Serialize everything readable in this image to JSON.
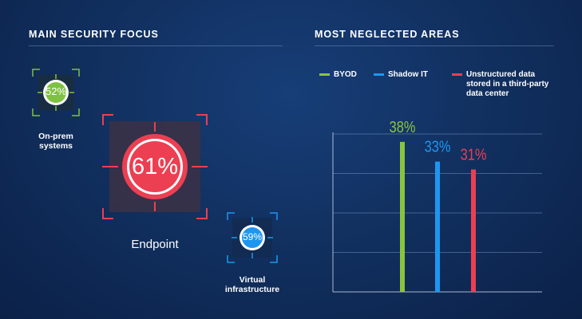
{
  "left_section": {
    "title": "MAIN SECURITY FOCUS",
    "items": [
      {
        "value": "52%",
        "label": "On-prem\nsystems",
        "color": "#7fc241",
        "ring": "#ffffff"
      },
      {
        "value": "61%",
        "label": "Endpoint",
        "color": "#ec3f52",
        "ring": "#ffffff"
      },
      {
        "value": "59%",
        "label": "Virtual\ninfrastructure",
        "color": "#1e96f0",
        "ring": "#ffffff"
      }
    ]
  },
  "right_section": {
    "title": "MOST NEGLECTED AREAS",
    "legend": [
      {
        "label": "BYOD",
        "color": "#8ac43d"
      },
      {
        "label": "Shadow IT",
        "color": "#1e96f0"
      },
      {
        "label": "Unstructured data\nstored in a third-party\ndata center",
        "color": "#ec3f52"
      }
    ]
  },
  "chart_data": {
    "type": "bar",
    "categories": [
      "BYOD",
      "Shadow IT",
      "Unstructured data stored in a third-party data center"
    ],
    "values": [
      38,
      33,
      31
    ],
    "value_labels": [
      "38%",
      "33%",
      "31%"
    ],
    "colors": [
      "#8ac43d",
      "#1e96f0",
      "#ec3f52"
    ],
    "ylim": [
      0,
      40
    ],
    "grid": true,
    "legend_position": "top",
    "title": "MOST NEGLECTED AREAS"
  }
}
